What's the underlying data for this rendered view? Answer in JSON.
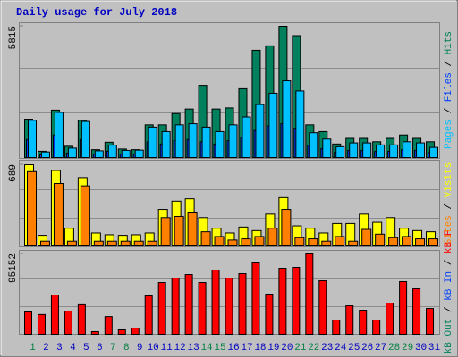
{
  "chart_data": [
    {
      "type": "bar",
      "title": "Daily usage for July 2018",
      "ylim": [
        0,
        5815
      ],
      "yticks": [
        5815
      ],
      "legend_separator": " / ",
      "series": [
        {
          "name": "Hits",
          "color": "#00805c",
          "values": [
            1700,
            280,
            2100,
            500,
            1650,
            350,
            680,
            380,
            350,
            1450,
            1450,
            1950,
            2150,
            3200,
            2150,
            2200,
            3050,
            4750,
            4950,
            5815,
            5400,
            1450,
            1150,
            600,
            850,
            850,
            700,
            850,
            1000,
            850,
            700
          ]
        },
        {
          "name": "Files",
          "color": "#0040ff",
          "values": [
            800,
            120,
            1000,
            200,
            800,
            150,
            280,
            160,
            160,
            700,
            600,
            750,
            800,
            700,
            600,
            750,
            900,
            1200,
            1400,
            1500,
            1300,
            550,
            400,
            230,
            320,
            320,
            270,
            280,
            350,
            320,
            220
          ]
        },
        {
          "name": "Pages",
          "color": "#00c0ff",
          "values": [
            1650,
            250,
            2000,
            420,
            1600,
            300,
            550,
            320,
            330,
            1350,
            1150,
            1450,
            1500,
            1350,
            1150,
            1450,
            1800,
            2350,
            2850,
            3400,
            2950,
            1100,
            820,
            480,
            650,
            650,
            560,
            560,
            700,
            650,
            450
          ]
        }
      ]
    },
    {
      "type": "bar",
      "ylim": [
        0,
        689
      ],
      "yticks": [
        689
      ],
      "legend_separator": " / ",
      "series": [
        {
          "name": "Visits",
          "color": "#ffff00",
          "values": [
            689,
            90,
            640,
            150,
            580,
            110,
            95,
            90,
            95,
            110,
            310,
            380,
            400,
            240,
            150,
            110,
            160,
            130,
            270,
            410,
            170,
            150,
            110,
            190,
            190,
            270,
            200,
            240,
            150,
            130,
            120
          ]
        },
        {
          "name": "Sites",
          "color": "#ff8000",
          "values": [
            630,
            40,
            530,
            40,
            510,
            40,
            40,
            40,
            40,
            40,
            240,
            250,
            280,
            120,
            80,
            50,
            60,
            80,
            150,
            310,
            70,
            60,
            40,
            80,
            40,
            140,
            100,
            70,
            80,
            60,
            60
          ]
        }
      ]
    },
    {
      "type": "bar",
      "ylim": [
        0,
        95152
      ],
      "yticks": [
        95152
      ],
      "legend_separator": " / ",
      "categories": [
        "1",
        "2",
        "3",
        "4",
        "5",
        "6",
        "7",
        "8",
        "9",
        "10",
        "11",
        "12",
        "13",
        "14",
        "15",
        "16",
        "17",
        "18",
        "19",
        "20",
        "21",
        "22",
        "23",
        "24",
        "25",
        "26",
        "27",
        "28",
        "29",
        "30",
        "31"
      ],
      "category_colors": [
        "#008040",
        "#0000c0",
        "#0000c0",
        "#0000c0",
        "#0000c0",
        "#0000c0",
        "#008040",
        "#008040",
        "#0000c0",
        "#0000c0",
        "#0000c0",
        "#0000c0",
        "#0000c0",
        "#008040",
        "#008040",
        "#0000c0",
        "#0000c0",
        "#0000c0",
        "#0000c0",
        "#0000c0",
        "#008040",
        "#008040",
        "#0000c0",
        "#0000c0",
        "#0000c0",
        "#0000c0",
        "#0000c0",
        "#008040",
        "#008040",
        "#0000c0",
        "#0000c0"
      ],
      "series": [
        {
          "name": "kB F",
          "color": "#ff0000",
          "values": [
            26400,
            23400,
            46500,
            27500,
            35000,
            3200,
            21000,
            5300,
            7400,
            45500,
            61300,
            66600,
            70800,
            61300,
            76100,
            66600,
            71900,
            84600,
            47600,
            78200,
            79300,
            95152,
            63400,
            16900,
            33800,
            28500,
            16900,
            37000,
            62400,
            53900,
            30600
          ]
        },
        {
          "name": "kB In",
          "color": "#0040ff",
          "values": [
            null,
            null,
            null,
            null,
            null,
            null,
            null,
            null,
            null,
            null,
            null,
            null,
            null,
            null,
            null,
            null,
            null,
            null,
            null,
            null,
            null,
            null,
            null,
            null,
            null,
            null,
            null,
            null,
            null,
            null,
            null
          ]
        },
        {
          "name": "kB Out",
          "color": "#00805c",
          "values": [
            null,
            null,
            null,
            null,
            null,
            null,
            null,
            null,
            null,
            null,
            null,
            null,
            null,
            null,
            null,
            null,
            null,
            null,
            null,
            null,
            null,
            null,
            null,
            null,
            null,
            null,
            null,
            null,
            null,
            null,
            null
          ]
        }
      ]
    }
  ]
}
